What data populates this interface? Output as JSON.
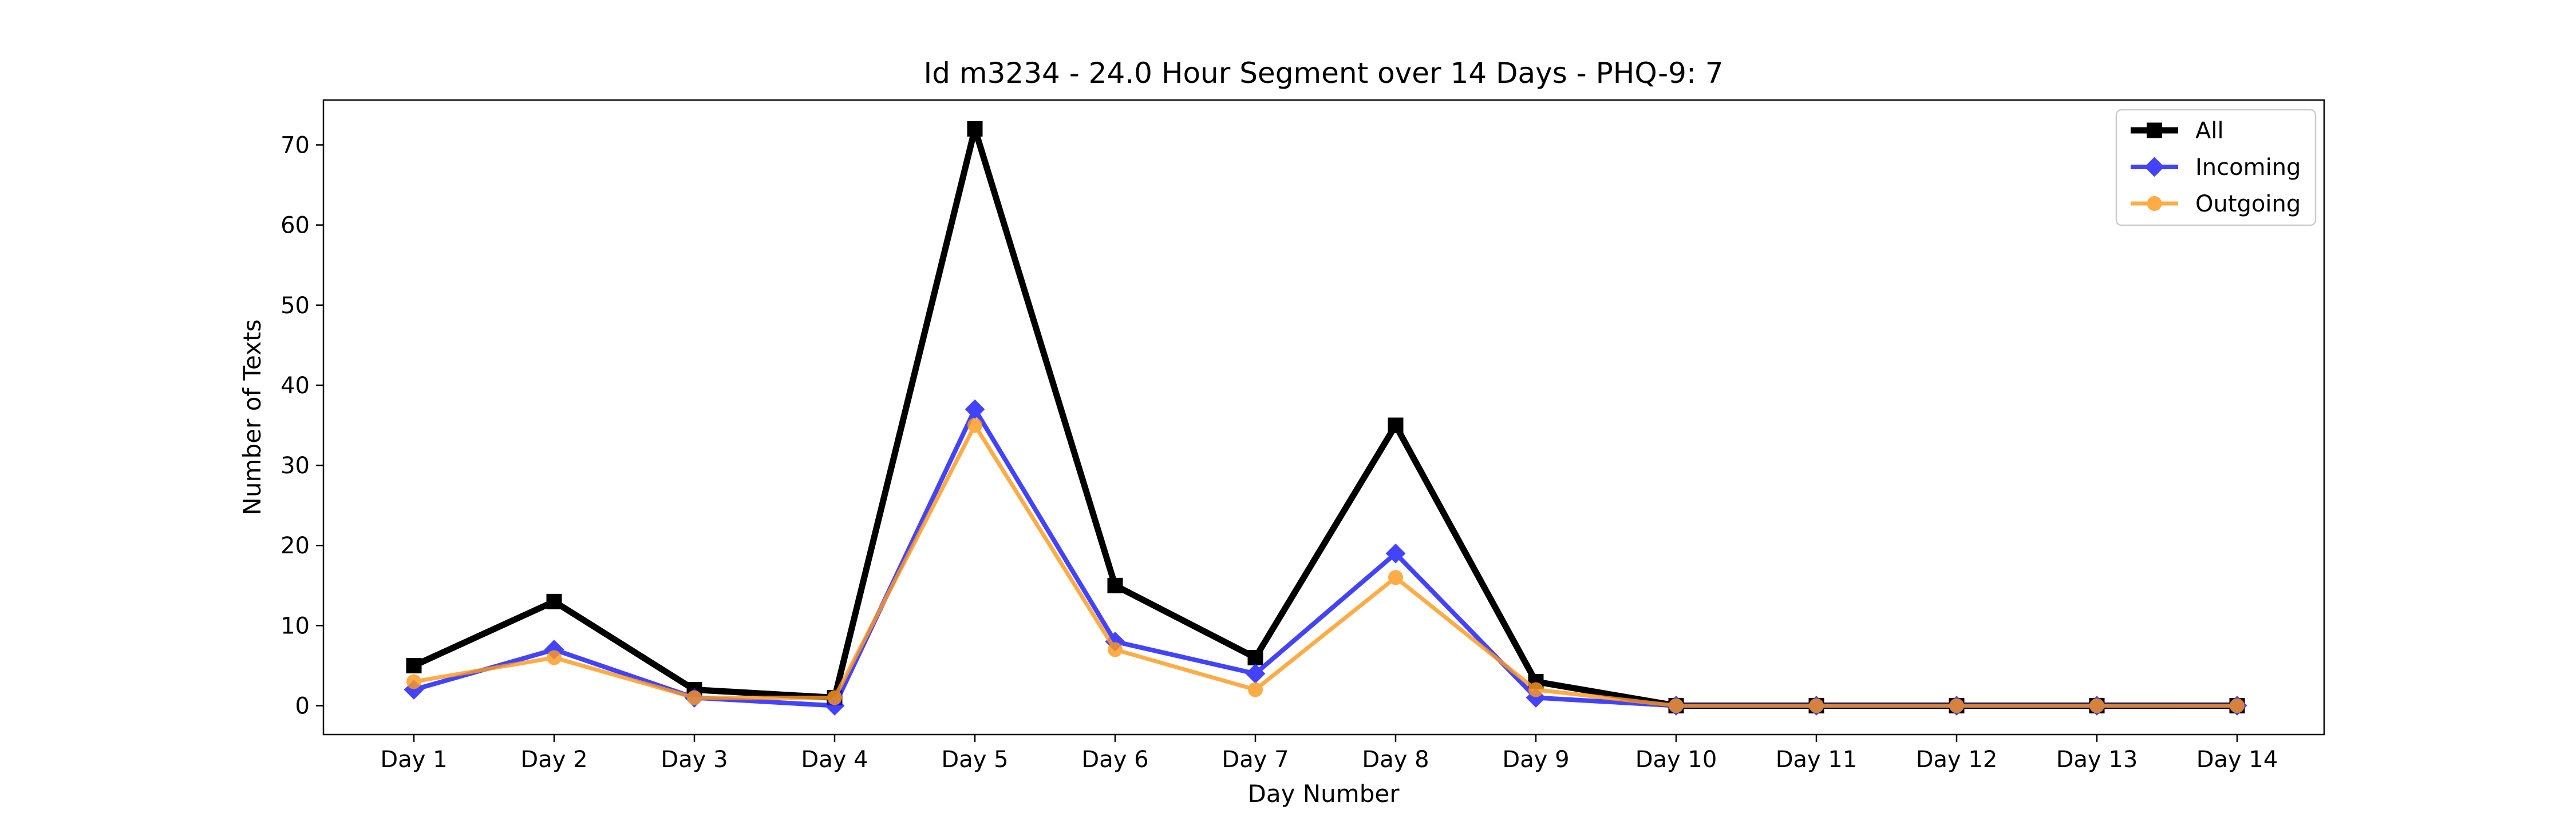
{
  "chart_data": {
    "type": "line",
    "title": "Id m3234 - 24.0 Hour Segment over 14 Days - PHQ-9: 7",
    "xlabel": "Day Number",
    "ylabel": "Number of Texts",
    "categories": [
      "Day 1",
      "Day 2",
      "Day 3",
      "Day 4",
      "Day 5",
      "Day 6",
      "Day 7",
      "Day 8",
      "Day 9",
      "Day 10",
      "Day 11",
      "Day 12",
      "Day 13",
      "Day 14"
    ],
    "ylim": [
      -3.6,
      75.6
    ],
    "yticks": [
      0,
      10,
      20,
      30,
      40,
      50,
      60,
      70
    ],
    "grid": false,
    "legend_position": "top-right",
    "series": [
      {
        "name": "All",
        "color": "#000000",
        "marker": "square",
        "values": [
          5,
          13,
          2,
          1,
          72,
          15,
          6,
          35,
          3,
          0,
          0,
          0,
          0,
          0
        ]
      },
      {
        "name": "Incoming",
        "color": "#1a1aff",
        "marker": "diamond",
        "values": [
          2,
          7,
          1,
          0,
          37,
          8,
          4,
          19,
          1,
          0,
          0,
          0,
          0,
          0
        ]
      },
      {
        "name": "Outgoing",
        "color": "#ff9a1f",
        "marker": "circle",
        "values": [
          3,
          6,
          1,
          1,
          35,
          7,
          2,
          16,
          2,
          0,
          0,
          0,
          0,
          0
        ]
      }
    ]
  }
}
